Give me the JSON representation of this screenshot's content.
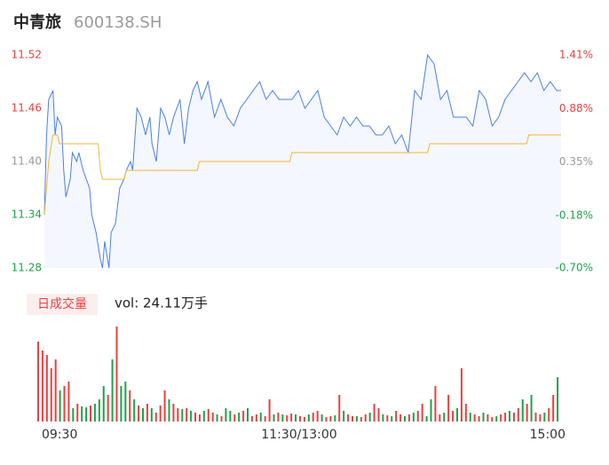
{
  "header": {
    "name": "中青旅",
    "code": "600138.SH"
  },
  "chart_data": [
    {
      "type": "line",
      "xlim": [
        0,
        240
      ],
      "xticks": [
        {
          "value": 0,
          "label": "09:30"
        },
        {
          "value": 120,
          "label": "11:30/13:00"
        },
        {
          "value": 240,
          "label": "15:00"
        }
      ],
      "ylim": [
        11.28,
        11.52
      ],
      "yticks": [
        11.28,
        11.34,
        {
          "value": 11.4,
          "label": "11.40"
        },
        11.46,
        11.52
      ],
      "ytick_colors": [
        "#1ea24c",
        "#1ea24c",
        "#999999",
        "#e8403f",
        "#e8403f"
      ],
      "y2lim": [
        -0.7,
        1.41
      ],
      "y2ticks": [
        {
          "value": -0.7,
          "label": "-0.70%"
        },
        {
          "value": -0.18,
          "label": "-0.18%"
        },
        {
          "value": 0.35,
          "label": "0.35%"
        },
        {
          "value": 0.88,
          "label": "0.88%"
        },
        {
          "value": 1.41,
          "label": "1.41%"
        }
      ],
      "area_color": "#f4f7fd",
      "series": [
        {
          "color": "#4a7fe8",
          "x": [
            0,
            1,
            2,
            4,
            5,
            6,
            8,
            9,
            10,
            12,
            13,
            15,
            16,
            18,
            21,
            22,
            24,
            26,
            27,
            28,
            30,
            31,
            33,
            35,
            37,
            38,
            40,
            41,
            43,
            45,
            47,
            49,
            50,
            52,
            54,
            56,
            58,
            60,
            63,
            65,
            67,
            69,
            71,
            73,
            76,
            79,
            82,
            85,
            88,
            91,
            94,
            97,
            100,
            103,
            106,
            109,
            112,
            115,
            118,
            121,
            124,
            127,
            130,
            133,
            136,
            139,
            142,
            145,
            148,
            151,
            154,
            157,
            160,
            163,
            166,
            169,
            172,
            175,
            178,
            181,
            184,
            187,
            190,
            193,
            196,
            199,
            202,
            205,
            208,
            211,
            214,
            217,
            220,
            223,
            226,
            229,
            232,
            235,
            238,
            240
          ],
          "values": [
            11.34,
            11.43,
            11.47,
            11.48,
            11.43,
            11.45,
            11.44,
            11.39,
            11.36,
            11.38,
            11.41,
            11.4,
            11.41,
            11.39,
            11.37,
            11.34,
            11.32,
            11.29,
            11.28,
            11.31,
            11.28,
            11.32,
            11.33,
            11.37,
            11.38,
            11.39,
            11.4,
            11.39,
            11.46,
            11.45,
            11.43,
            11.45,
            11.42,
            11.4,
            11.46,
            11.45,
            11.43,
            11.45,
            11.47,
            11.42,
            11.46,
            11.48,
            11.49,
            11.47,
            11.49,
            11.45,
            11.47,
            11.45,
            11.44,
            11.46,
            11.47,
            11.48,
            11.49,
            11.47,
            11.48,
            11.47,
            11.47,
            11.47,
            11.48,
            11.46,
            11.47,
            11.48,
            11.45,
            11.44,
            11.43,
            11.45,
            11.44,
            11.45,
            11.44,
            11.44,
            11.43,
            11.43,
            11.44,
            11.42,
            11.43,
            11.41,
            11.48,
            11.47,
            11.52,
            11.51,
            11.47,
            11.48,
            11.45,
            11.45,
            11.45,
            11.44,
            11.48,
            11.47,
            11.44,
            11.45,
            11.47,
            11.48,
            11.49,
            11.5,
            11.49,
            11.5,
            11.48,
            11.49,
            11.48,
            11.48
          ]
        },
        {
          "color": "#f2b630",
          "x": [
            0,
            2,
            4,
            6,
            7,
            25,
            26,
            27,
            37,
            38,
            71,
            72,
            114,
            115,
            178,
            179,
            224,
            225,
            240
          ],
          "values": [
            11.34,
            11.4,
            11.43,
            11.43,
            11.42,
            11.42,
            11.39,
            11.38,
            11.38,
            11.39,
            11.39,
            11.4,
            11.4,
            11.41,
            11.41,
            11.42,
            11.42,
            11.43,
            11.43
          ]
        }
      ]
    },
    {
      "type": "bar",
      "label": "日成交量",
      "annotation": "vol: 24.11万手",
      "xlim": [
        0,
        240
      ],
      "xticks": [
        {
          "value": 0,
          "label": "09:30"
        },
        {
          "value": 120,
          "label": "11:30/13:00"
        },
        {
          "value": 240,
          "label": "15:00"
        }
      ],
      "x": [
        0,
        2,
        4,
        6,
        8,
        10,
        12,
        14,
        16,
        18,
        20,
        22,
        24,
        26,
        28,
        30,
        32,
        34,
        36,
        38,
        40,
        42,
        44,
        46,
        48,
        50,
        52,
        54,
        56,
        58,
        60,
        62,
        64,
        66,
        68,
        70,
        72,
        74,
        76,
        78,
        80,
        82,
        84,
        86,
        88,
        90,
        92,
        94,
        96,
        98,
        100,
        102,
        104,
        106,
        108,
        110,
        112,
        114,
        116,
        118,
        120,
        122,
        124,
        126,
        128,
        130,
        132,
        134,
        136,
        138,
        140,
        142,
        144,
        146,
        148,
        150,
        152,
        154,
        156,
        158,
        160,
        162,
        164,
        166,
        168,
        170,
        172,
        174,
        176,
        178,
        180,
        182,
        184,
        186,
        188,
        190,
        192,
        194,
        196,
        198,
        200,
        202,
        204,
        206,
        208,
        210,
        212,
        214,
        216,
        218,
        220,
        222,
        224,
        226,
        228,
        230,
        232,
        234,
        236,
        238
      ],
      "values": [
        9000,
        8000,
        7500,
        6000,
        7000,
        3500,
        4000,
        4500,
        1500,
        2000,
        1700,
        1600,
        1800,
        2000,
        2500,
        4000,
        3000,
        7000,
        10700,
        4000,
        4500,
        3500,
        2500,
        1800,
        1500,
        2000,
        1500,
        1000,
        1800,
        3500,
        2500,
        2000,
        1500,
        1400,
        1500,
        1200,
        1000,
        800,
        1200,
        1400,
        1000,
        800,
        600,
        1500,
        1200,
        800,
        1000,
        1200,
        1500,
        600,
        800,
        1000,
        600,
        2500,
        800,
        1000,
        800,
        700,
        900,
        800,
        600,
        500,
        800,
        1000,
        1200,
        800,
        500,
        600,
        700,
        3000,
        1200,
        800,
        600,
        600,
        500,
        800,
        1000,
        2000,
        1500,
        800,
        700,
        600,
        1200,
        800,
        600,
        800,
        1000,
        1200,
        2000,
        600,
        2500,
        4000,
        800,
        1000,
        3000,
        1200,
        1500,
        6000,
        2000,
        1000,
        800,
        600,
        1000,
        800,
        500,
        600,
        800,
        1000,
        1200,
        1000,
        1500,
        2500,
        2000,
        3000,
        1000,
        800,
        1000,
        1500,
        3000,
        5000
      ],
      "colors": [
        "#e8403f",
        "#e8403f",
        "#e8403f",
        "#e8403f",
        "#e8403f",
        "#1ea24c",
        "#e8403f",
        "#e8403f",
        "#1ea24c",
        "#e8403f",
        "#1ea24c",
        "#1ea24c",
        "#e8403f",
        "#1ea24c",
        "#1ea24c",
        "#1ea24c",
        "#e8403f",
        "#1ea24c",
        "#e8403f",
        "#1ea24c",
        "#1ea24c",
        "#e8403f",
        "#1ea24c",
        "#e8403f",
        "#1ea24c",
        "#e8403f",
        "#1ea24c",
        "#e8403f",
        "#e8403f",
        "#e8403f",
        "#1ea24c",
        "#e8403f",
        "#e8403f",
        "#1ea24c",
        "#e8403f",
        "#1ea24c",
        "#e8403f",
        "#e8403f",
        "#1ea24c",
        "#e8403f",
        "#e8403f",
        "#1ea24c",
        "#e8403f",
        "#1ea24c",
        "#1ea24c",
        "#e8403f",
        "#1ea24c",
        "#e8403f",
        "#1ea24c",
        "#e8403f",
        "#e8403f",
        "#1ea24c",
        "#e8403f",
        "#e8403f",
        "#1ea24c",
        "#e8403f",
        "#1ea24c",
        "#e8403f",
        "#e8403f",
        "#1ea24c",
        "#e8403f",
        "#e8403f",
        "#1ea24c",
        "#e8403f",
        "#e8403f",
        "#1ea24c",
        "#e8403f",
        "#e8403f",
        "#1ea24c",
        "#e8403f",
        "#1ea24c",
        "#e8403f",
        "#e8403f",
        "#1ea24c",
        "#e8403f",
        "#e8403f",
        "#1ea24c",
        "#e8403f",
        "#e8403f",
        "#1ea24c",
        "#e8403f",
        "#1ea24c",
        "#e8403f",
        "#e8403f",
        "#1ea24c",
        "#e8403f",
        "#1ea24c",
        "#e8403f",
        "#e8403f",
        "#1ea24c",
        "#1ea24c",
        "#e8403f",
        "#e8403f",
        "#1ea24c",
        "#e8403f",
        "#e8403f",
        "#1ea24c",
        "#e8403f",
        "#e8403f",
        "#1ea24c",
        "#e8403f",
        "#e8403f",
        "#1ea24c",
        "#e8403f",
        "#e8403f",
        "#1ea24c",
        "#e8403f",
        "#e8403f",
        "#1ea24c",
        "#e8403f",
        "#e8403f",
        "#1ea24c",
        "#e8403f",
        "#1ea24c",
        "#e8403f",
        "#e8403f",
        "#1ea24c",
        "#e8403f",
        "#e8403f",
        "#1ea24c"
      ]
    }
  ]
}
